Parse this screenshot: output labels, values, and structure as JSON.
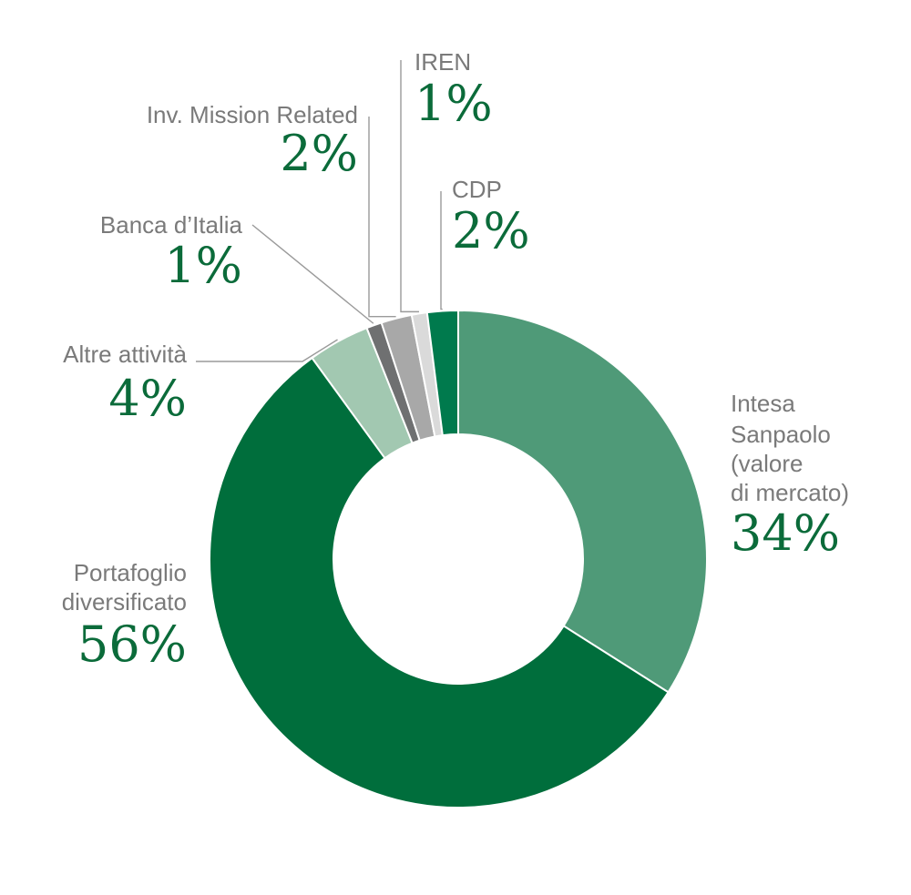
{
  "chart_data": {
    "type": "pie",
    "donut": true,
    "title": "",
    "slices": [
      {
        "label": "Intesa Sanpaolo (valore di mercato)",
        "label_lines": [
          "Intesa",
          "Sanpaolo",
          "(valore",
          "di mercato)"
        ],
        "value": 34,
        "pct_label": "34%",
        "color": "#4f9a78"
      },
      {
        "label": "Portafoglio diversificato",
        "label_lines": [
          "Portafoglio",
          "diversificato"
        ],
        "value": 56,
        "pct_label": "56%",
        "color": "#006e3c"
      },
      {
        "label": "Altre attività",
        "label_lines": [
          "Altre attività"
        ],
        "value": 4,
        "pct_label": "4%",
        "color": "#a2c8b1"
      },
      {
        "label": "Banca d’Italia",
        "label_lines": [
          "Banca d’Italia"
        ],
        "value": 1,
        "pct_label": "1%",
        "color": "#6f7071"
      },
      {
        "label": "Inv. Mission Related",
        "label_lines": [
          "Inv. Mission Related"
        ],
        "value": 2,
        "pct_label": "2%",
        "color": "#a8a8a8"
      },
      {
        "label": "IREN",
        "label_lines": [
          "IREN"
        ],
        "value": 1,
        "pct_label": "1%",
        "color": "#dadada"
      },
      {
        "label": "CDP",
        "label_lines": [
          "CDP"
        ],
        "value": 2,
        "pct_label": "2%",
        "color": "#007a4d"
      }
    ]
  }
}
